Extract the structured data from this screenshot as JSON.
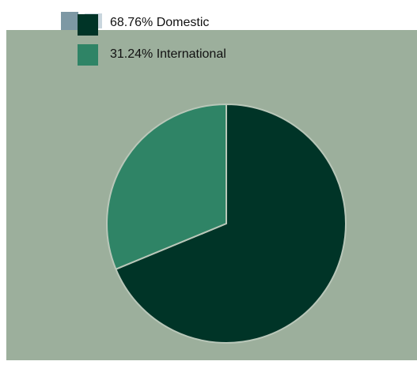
{
  "colors": {
    "page_background": "#ffffff",
    "panel_background": "#9caf9c",
    "slice_separator": "#b9c7b9"
  },
  "chart_data": {
    "type": "pie",
    "legend_position": "top-left",
    "slices": [
      {
        "label": "68.76% Domestic",
        "value": 68.76,
        "color": "#003427"
      },
      {
        "label": "31.24% International",
        "value": 31.24,
        "color": "#2f8466"
      }
    ]
  }
}
